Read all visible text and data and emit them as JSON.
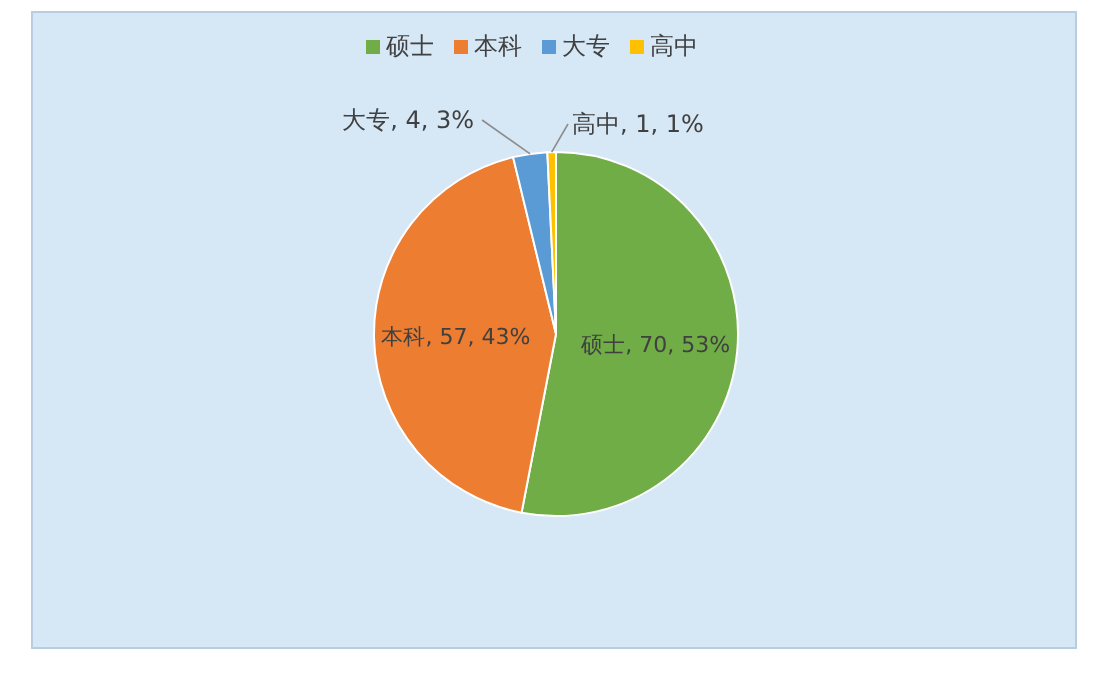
{
  "chart_data": {
    "type": "pie",
    "categories": [
      "硕士",
      "本科",
      "大专",
      "高中"
    ],
    "values": [
      70,
      57,
      4,
      1
    ],
    "colors": [
      "#70ad47",
      "#ed7d31",
      "#5b9bd5",
      "#ffc000"
    ],
    "value_labels": [
      "硕士, 70, 53%",
      "本科, 57, 43%",
      "大专, 4, 3%",
      "高中, 1, 1%"
    ],
    "legend": "top"
  }
}
